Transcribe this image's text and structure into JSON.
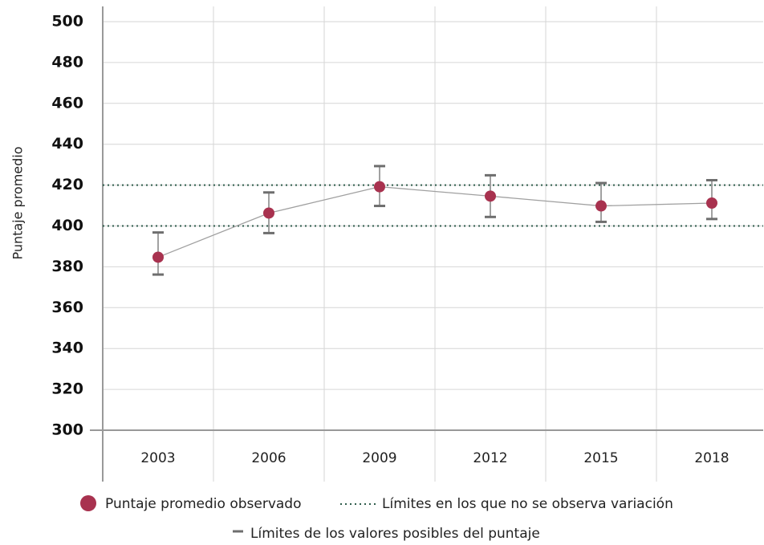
{
  "chart_data": {
    "type": "line",
    "y_label": "Puntaje promedio",
    "categories": [
      "2003",
      "2006",
      "2009",
      "2012",
      "2015",
      "2018"
    ],
    "series": [
      {
        "name": "Puntaje promedio observado",
        "color": "#a8324f",
        "line_color": "#a0a0a0",
        "values": [
          384.7,
          406.3,
          419.2,
          414.6,
          409.8,
          411.2
        ]
      }
    ],
    "error_bars": {
      "name": "Límites de los valores posibles del puntaje",
      "color": "#6e6e6e",
      "lower": [
        376.2,
        396.5,
        409.8,
        404.4,
        402.0,
        403.4
      ],
      "upper": [
        396.8,
        416.4,
        429.3,
        424.8,
        421.0,
        422.4
      ]
    },
    "reference_lines": {
      "name": "Límites en los que no se observa variación",
      "color": "#2f5d4c",
      "values": [
        420,
        400
      ]
    },
    "ylim": [
      300,
      500
    ],
    "yticks": [
      300,
      320,
      340,
      360,
      380,
      400,
      420,
      440,
      460,
      480,
      500
    ],
    "grid": true
  }
}
